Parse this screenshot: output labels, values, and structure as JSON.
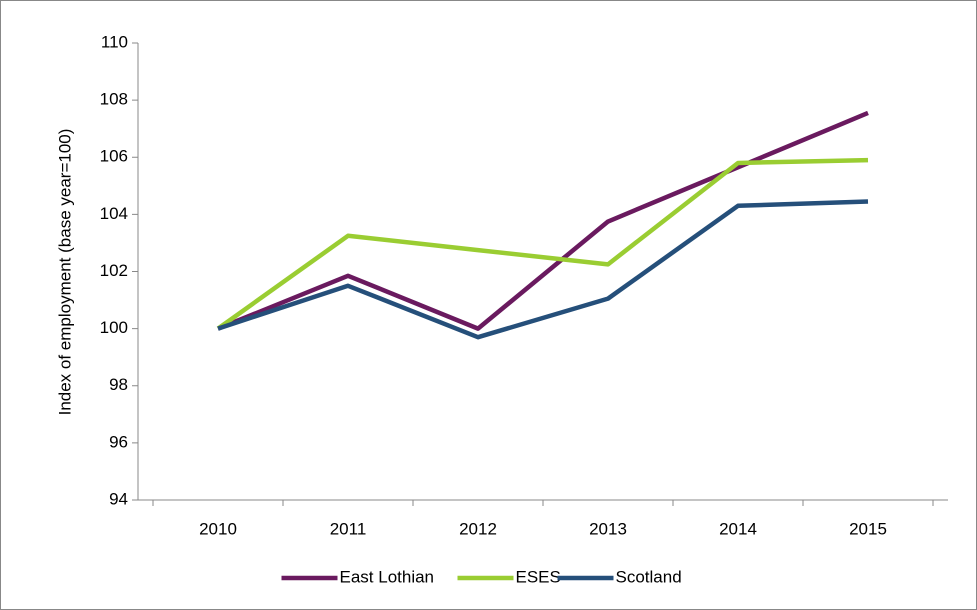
{
  "chart_data": {
    "type": "line",
    "y_label": "Index of employment (base year=100)",
    "categories": [
      "2010",
      "2011",
      "2012",
      "2013",
      "2014",
      "2015"
    ],
    "series": [
      {
        "name": "East Lothian",
        "color": "#6a1a5f",
        "values": [
          100,
          101.85,
          100,
          103.75,
          105.65,
          107.55
        ]
      },
      {
        "name": "ESES",
        "color": "#9acd32",
        "values": [
          100,
          103.25,
          102.75,
          102.25,
          105.8,
          105.9
        ]
      },
      {
        "name": "Scotland",
        "color": "#254f7a",
        "values": [
          100,
          101.5,
          99.7,
          101.05,
          104.3,
          104.45
        ]
      }
    ],
    "ylim": [
      94,
      110
    ],
    "yticks": [
      94,
      96,
      98,
      100,
      102,
      104,
      106,
      108,
      110
    ],
    "legend": "bottom"
  }
}
